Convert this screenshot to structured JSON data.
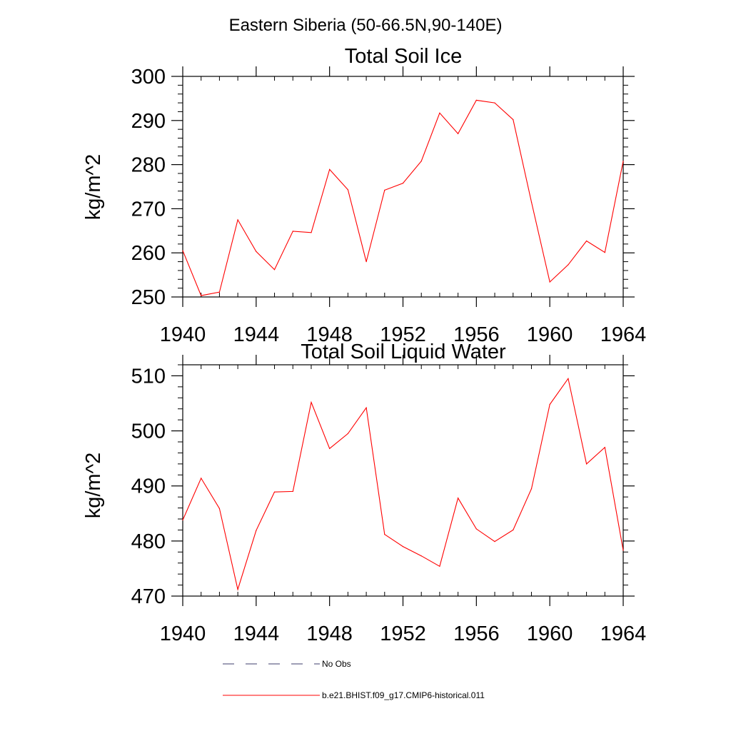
{
  "figure": {
    "suptitle": "Eastern Siberia (50-66.5N,90-140E)"
  },
  "colors": {
    "model": "#ff0000",
    "obs": "#3d3d6b",
    "axis": "#000000"
  },
  "legend": {
    "placement": "bottom",
    "entries": [
      {
        "label": "No Obs",
        "style": "dashed",
        "color": "#3d3d6b"
      },
      {
        "label": "b.e21.BHIST.f09_g17.CMIP6-historical.011",
        "style": "solid",
        "color": "#ff0000"
      }
    ]
  },
  "chart_data": [
    {
      "type": "line",
      "title": "Total Soil Ice",
      "xlabel": "",
      "ylabel": "kg/m^2",
      "xlim": [
        1940,
        1964
      ],
      "ylim": [
        250,
        300
      ],
      "xticks": [
        1940,
        1944,
        1948,
        1952,
        1956,
        1960,
        1964
      ],
      "yticks": [
        250,
        260,
        270,
        280,
        290,
        300
      ],
      "xtick_labels": [
        "1940",
        "1944",
        "1948",
        "1952",
        "1956",
        "1960",
        "1964"
      ],
      "ytick_labels": [
        "250",
        "260",
        "270",
        "280",
        "290",
        "300"
      ],
      "grid": false,
      "x": [
        1940,
        1941,
        1942,
        1943,
        1944,
        1945,
        1946,
        1947,
        1948,
        1949,
        1950,
        1951,
        1952,
        1953,
        1954,
        1955,
        1956,
        1957,
        1958,
        1959,
        1960,
        1961,
        1962,
        1963,
        1964
      ],
      "series": [
        {
          "name": "b.e21.BHIST.f09_g17.CMIP6-historical.011",
          "color": "#ff0000",
          "values": [
            260.5,
            250.3,
            251.1,
            267.5,
            260.3,
            256.2,
            264.9,
            264.6,
            278.9,
            274.3,
            258.0,
            274.2,
            275.8,
            280.8,
            291.7,
            287.0,
            294.6,
            294.0,
            290.2,
            271.5,
            253.4,
            257.3,
            262.7,
            260.1,
            280.8
          ]
        }
      ]
    },
    {
      "type": "line",
      "title": "Total Soil Liquid Water",
      "xlabel": "",
      "ylabel": "kg/m^2",
      "xlim": [
        1940,
        1964
      ],
      "ylim": [
        470,
        512
      ],
      "xticks": [
        1940,
        1944,
        1948,
        1952,
        1956,
        1960,
        1964
      ],
      "yticks": [
        470,
        480,
        490,
        500,
        510
      ],
      "xtick_labels": [
        "1940",
        "1944",
        "1948",
        "1952",
        "1956",
        "1960",
        "1964"
      ],
      "ytick_labels": [
        "470",
        "480",
        "490",
        "500",
        "510"
      ],
      "grid": false,
      "x": [
        1940,
        1941,
        1942,
        1943,
        1944,
        1945,
        1946,
        1947,
        1948,
        1949,
        1950,
        1951,
        1952,
        1953,
        1954,
        1955,
        1956,
        1957,
        1958,
        1959,
        1960,
        1961,
        1962,
        1963,
        1964
      ],
      "series": [
        {
          "name": "b.e21.BHIST.f09_g17.CMIP6-historical.011",
          "color": "#ff0000",
          "values": [
            483.8,
            491.4,
            485.9,
            471.2,
            481.9,
            488.9,
            489.0,
            505.2,
            496.8,
            499.5,
            504.2,
            481.2,
            479.0,
            477.3,
            475.4,
            487.8,
            482.2,
            479.9,
            482.0,
            489.5,
            504.8,
            509.5,
            494.0,
            497.0,
            478.3
          ]
        }
      ]
    }
  ]
}
